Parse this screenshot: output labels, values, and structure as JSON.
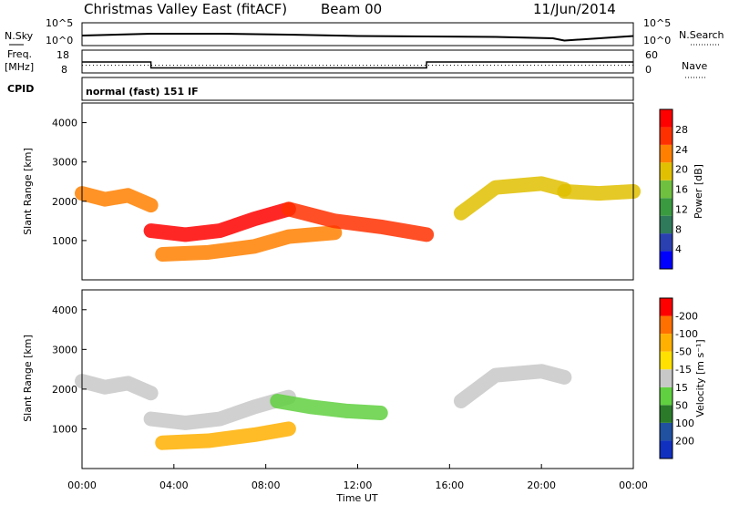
{
  "header": {
    "title": "Christmas Valley East (fitACF)",
    "beam": "Beam 00",
    "date": "11/Jun/2014"
  },
  "left_labels": {
    "nsky": "N.Sky",
    "freq": "Freq.",
    "freq_unit": "[MHz]",
    "cpid": "CPID"
  },
  "right_labels": {
    "nsearch": "N.Search",
    "nave": "Nave"
  },
  "cpid_text": "normal (fast) 151 IF",
  "colors": {
    "power": [
      "#0000ff",
      "#2a3fb0",
      "#2f7a5a",
      "#3a9a40",
      "#70c040",
      "#e0c000",
      "#ff8000",
      "#ff3000",
      "#ff0000"
    ],
    "velocity": [
      "#ff0000",
      "#ff7000",
      "#ffb000",
      "#ffe000",
      "#c8c8c8",
      "#60d040",
      "#2a7a2a",
      "#2050a0",
      "#1030c0"
    ]
  },
  "chart_data": [
    {
      "type": "line",
      "title": "N.Sky / N.Search",
      "ylabels_left": [
        "10^5",
        "10^0"
      ],
      "ylabels_right": [
        "10^5",
        "10^0"
      ],
      "x": [
        0,
        3,
        6,
        9,
        12,
        15,
        18,
        20.5,
        21,
        24
      ],
      "values": [
        2.2,
        2.6,
        2.6,
        2.4,
        2.1,
        2.0,
        1.9,
        1.6,
        1.1,
        2.1
      ]
    },
    {
      "type": "line",
      "title": "Freq. / Nave",
      "ylabels_left": [
        "18",
        "8"
      ],
      "ylabels_right": [
        "60",
        "0"
      ],
      "freq_series": {
        "x": [
          0,
          3.0,
          3.0,
          15.0,
          15.0,
          24
        ],
        "values": [
          12.8,
          12.8,
          10.2,
          10.2,
          12.8,
          12.8
        ]
      },
      "nave_series": {
        "x": [
          0,
          24
        ],
        "values": [
          20,
          20
        ]
      }
    },
    {
      "type": "heatmap",
      "ylabel": "Slant Range [km]",
      "yticks": [
        "1000",
        "2000",
        "3000",
        "4000"
      ],
      "colorbar_label": "Power [dB]",
      "colorbar_ticks": [
        "4",
        "8",
        "12",
        "16",
        "20",
        "24",
        "28"
      ],
      "echo_bands_km": [
        {
          "x": [
            0,
            1.0,
            2.0,
            3.0
          ],
          "y": [
            2200,
            2050,
            2150,
            1900
          ],
          "level": 6
        },
        {
          "x": [
            3.0,
            4.5,
            6.0,
            7.5,
            9.0
          ],
          "y": [
            1250,
            1150,
            1250,
            1550,
            1800
          ],
          "level": 8
        },
        {
          "x": [
            3.5,
            5.5,
            7.5,
            9.0,
            11.0
          ],
          "y": [
            650,
            700,
            850,
            1100,
            1200
          ],
          "level": 6
        },
        {
          "x": [
            9.0,
            11.0,
            13.0,
            15.0
          ],
          "y": [
            1800,
            1500,
            1350,
            1150
          ],
          "level": 7
        },
        {
          "x": [
            16.5,
            18.0,
            20.0,
            21.0
          ],
          "y": [
            1700,
            2350,
            2450,
            2300
          ],
          "level": 5
        },
        {
          "x": [
            21.0,
            22.5,
            24.0
          ],
          "y": [
            2250,
            2200,
            2250
          ],
          "level": 5
        }
      ]
    },
    {
      "type": "heatmap",
      "ylabel": "Slant Range [km]",
      "xlabel": "Time UT",
      "xticks": [
        "00:00",
        "04:00",
        "08:00",
        "12:00",
        "16:00",
        "20:00",
        "00:00"
      ],
      "yticks": [
        "1000",
        "2000",
        "3000",
        "4000"
      ],
      "colorbar_label": "Velocity [m s⁻¹]",
      "colorbar_ticks": [
        "200",
        "100",
        "50",
        "15",
        "-15",
        "-50",
        "-100",
        "-200"
      ],
      "echo_bands_km": [
        {
          "x": [
            0,
            1.0,
            2.0,
            3.0
          ],
          "y": [
            2200,
            2050,
            2150,
            1900
          ],
          "velocity": 0
        },
        {
          "x": [
            3.0,
            4.5,
            6.0,
            7.5,
            9.0
          ],
          "y": [
            1250,
            1150,
            1250,
            1550,
            1800
          ],
          "velocity": 0
        },
        {
          "x": [
            8.5,
            10.0,
            11.5,
            13.0
          ],
          "y": [
            1700,
            1550,
            1450,
            1400
          ],
          "velocity": 30
        },
        {
          "x": [
            3.5,
            5.5,
            7.5,
            9.0
          ],
          "y": [
            650,
            700,
            850,
            1000
          ],
          "velocity": -60
        },
        {
          "x": [
            16.5,
            18.0,
            20.0,
            21.0
          ],
          "y": [
            1700,
            2350,
            2450,
            2300
          ],
          "velocity": 0
        }
      ]
    }
  ]
}
